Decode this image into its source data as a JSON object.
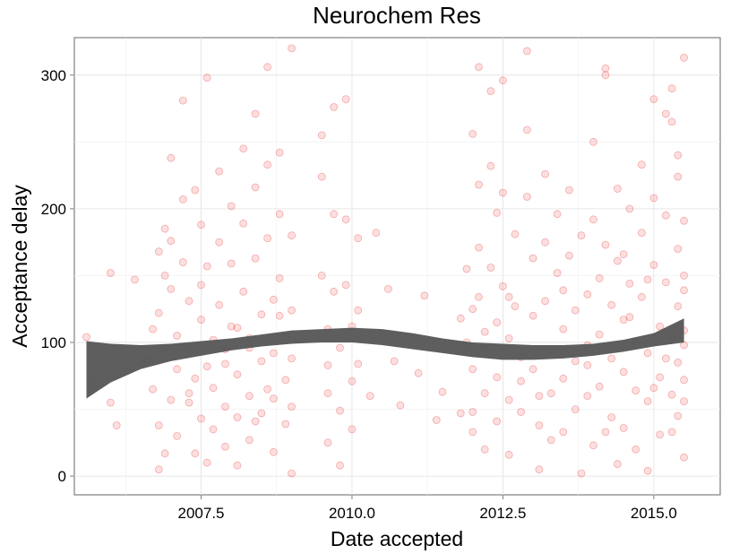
{
  "chart_data": {
    "type": "scatter",
    "title": "Neurochem Res",
    "xlabel": "Date accepted",
    "ylabel": "Acceptance delay",
    "xlim": [
      2005.4,
      2016.1
    ],
    "ylim": [
      -14,
      328
    ],
    "xticks": [
      2007.5,
      2010.0,
      2012.5,
      2015.0
    ],
    "xtick_labels": [
      "2007.5",
      "2010.0",
      "2012.5",
      "2015.0"
    ],
    "yticks": [
      0,
      100,
      200,
      300
    ],
    "ytick_labels": [
      "0",
      "100",
      "200",
      "300"
    ],
    "grid": true,
    "point_color": "#e8262a",
    "band_color": "#555555",
    "series": [
      {
        "type": "scatter",
        "points": [
          [
            2005.6,
            104
          ],
          [
            2005.7,
            70
          ],
          [
            2006.0,
            152
          ],
          [
            2006.0,
            55
          ],
          [
            2006.1,
            38
          ],
          [
            2006.4,
            147
          ],
          [
            2006.6,
            87
          ],
          [
            2006.8,
            122
          ],
          [
            2006.8,
            168
          ],
          [
            2006.9,
            185
          ],
          [
            2006.9,
            96
          ],
          [
            2006.7,
            65
          ],
          [
            2006.8,
            38
          ],
          [
            2006.9,
            17
          ],
          [
            2006.8,
            5
          ],
          [
            2007.0,
            238
          ],
          [
            2007.0,
            140
          ],
          [
            2007.1,
            105
          ],
          [
            2007.1,
            80
          ],
          [
            2007.0,
            57
          ],
          [
            2007.1,
            30
          ],
          [
            2007.2,
            281
          ],
          [
            2007.2,
            207
          ],
          [
            2007.2,
            160
          ],
          [
            2007.3,
            131
          ],
          [
            2007.3,
            94
          ],
          [
            2007.3,
            62
          ],
          [
            2007.4,
            17
          ],
          [
            2007.4,
            214
          ],
          [
            2007.5,
            188
          ],
          [
            2007.5,
            143
          ],
          [
            2007.5,
            117
          ],
          [
            2007.4,
            73
          ],
          [
            2007.5,
            43
          ],
          [
            2007.6,
            10
          ],
          [
            2007.6,
            298
          ],
          [
            2007.6,
            157
          ],
          [
            2007.7,
            102
          ],
          [
            2007.7,
            66
          ],
          [
            2007.7,
            35
          ],
          [
            2007.8,
            228
          ],
          [
            2007.8,
            175
          ],
          [
            2007.8,
            128
          ],
          [
            2007.9,
            84
          ],
          [
            2007.9,
            52
          ],
          [
            2007.9,
            22
          ],
          [
            2008.0,
            202
          ],
          [
            2008.0,
            159
          ],
          [
            2008.0,
            112
          ],
          [
            2008.1,
            76
          ],
          [
            2008.1,
            44
          ],
          [
            2008.1,
            8
          ],
          [
            2008.2,
            245
          ],
          [
            2008.2,
            189
          ],
          [
            2008.2,
            138
          ],
          [
            2008.3,
            96
          ],
          [
            2008.3,
            60
          ],
          [
            2008.3,
            27
          ],
          [
            2008.4,
            271
          ],
          [
            2008.4,
            216
          ],
          [
            2008.4,
            163
          ],
          [
            2008.5,
            121
          ],
          [
            2008.5,
            86
          ],
          [
            2008.5,
            47
          ],
          [
            2008.6,
            306
          ],
          [
            2008.6,
            233
          ],
          [
            2008.6,
            178
          ],
          [
            2008.7,
            132
          ],
          [
            2008.7,
            92
          ],
          [
            2008.7,
            58
          ],
          [
            2008.7,
            18
          ],
          [
            2008.8,
            242
          ],
          [
            2008.8,
            196
          ],
          [
            2008.8,
            148
          ],
          [
            2008.9,
            104
          ],
          [
            2008.9,
            72
          ],
          [
            2008.9,
            39
          ],
          [
            2009.0,
            320
          ],
          [
            2009.0,
            180
          ],
          [
            2009.0,
            124
          ],
          [
            2009.0,
            88
          ],
          [
            2009.0,
            52
          ],
          [
            2009.0,
            2
          ],
          [
            2009.5,
            255
          ],
          [
            2009.5,
            224
          ],
          [
            2009.5,
            150
          ],
          [
            2009.6,
            110
          ],
          [
            2009.6,
            62
          ],
          [
            2009.6,
            25
          ],
          [
            2009.7,
            276
          ],
          [
            2009.7,
            196
          ],
          [
            2009.7,
            138
          ],
          [
            2009.8,
            96
          ],
          [
            2009.8,
            49
          ],
          [
            2009.8,
            8
          ],
          [
            2009.9,
            282
          ],
          [
            2009.9,
            192
          ],
          [
            2009.9,
            143
          ],
          [
            2010.0,
            112
          ],
          [
            2010.0,
            71
          ],
          [
            2010.0,
            35
          ],
          [
            2010.1,
            178
          ],
          [
            2010.1,
            124
          ],
          [
            2010.1,
            84
          ],
          [
            2010.3,
            60
          ],
          [
            2010.4,
            182
          ],
          [
            2010.6,
            140
          ],
          [
            2010.7,
            86
          ],
          [
            2010.8,
            53
          ],
          [
            2011.1,
            77
          ],
          [
            2011.2,
            135
          ],
          [
            2011.4,
            42
          ],
          [
            2011.5,
            63
          ],
          [
            2011.8,
            47
          ],
          [
            2011.9,
            100
          ],
          [
            2011.9,
            155
          ],
          [
            2012.0,
            256
          ],
          [
            2012.0,
            125
          ],
          [
            2012.0,
            80
          ],
          [
            2012.0,
            33
          ],
          [
            2012.1,
            306
          ],
          [
            2012.1,
            218
          ],
          [
            2012.1,
            171
          ],
          [
            2012.1,
            134
          ],
          [
            2012.2,
            96
          ],
          [
            2012.2,
            62
          ],
          [
            2012.2,
            20
          ],
          [
            2012.3,
            288
          ],
          [
            2012.3,
            232
          ],
          [
            2012.3,
            156
          ],
          [
            2012.4,
            115
          ],
          [
            2012.4,
            74
          ],
          [
            2012.4,
            41
          ],
          [
            2012.5,
            296
          ],
          [
            2012.5,
            212
          ],
          [
            2012.5,
            142
          ],
          [
            2012.6,
            103
          ],
          [
            2012.6,
            57
          ],
          [
            2012.6,
            16
          ],
          [
            2012.7,
            181
          ],
          [
            2012.7,
            127
          ],
          [
            2012.8,
            89
          ],
          [
            2012.8,
            48
          ],
          [
            2012.9,
            318
          ],
          [
            2012.9,
            259
          ],
          [
            2012.9,
            209
          ],
          [
            2013.0,
            163
          ],
          [
            2013.0,
            120
          ],
          [
            2013.0,
            80
          ],
          [
            2013.1,
            38
          ],
          [
            2013.1,
            5
          ],
          [
            2013.2,
            226
          ],
          [
            2013.2,
            175
          ],
          [
            2013.2,
            131
          ],
          [
            2013.3,
            94
          ],
          [
            2013.3,
            62
          ],
          [
            2013.3,
            27
          ],
          [
            2013.4,
            196
          ],
          [
            2013.4,
            152
          ],
          [
            2013.5,
            110
          ],
          [
            2013.5,
            73
          ],
          [
            2013.5,
            33
          ],
          [
            2013.6,
            214
          ],
          [
            2013.6,
            165
          ],
          [
            2013.7,
            124
          ],
          [
            2013.7,
            86
          ],
          [
            2013.7,
            50
          ],
          [
            2013.8,
            2
          ],
          [
            2013.8,
            180
          ],
          [
            2013.9,
            136
          ],
          [
            2013.9,
            98
          ],
          [
            2013.9,
            60
          ],
          [
            2014.0,
            23
          ],
          [
            2014.0,
            250
          ],
          [
            2014.0,
            192
          ],
          [
            2014.1,
            148
          ],
          [
            2014.1,
            106
          ],
          [
            2014.1,
            67
          ],
          [
            2014.2,
            300
          ],
          [
            2014.2,
            305
          ],
          [
            2014.2,
            173
          ],
          [
            2014.3,
            128
          ],
          [
            2014.3,
            88
          ],
          [
            2014.3,
            44
          ],
          [
            2014.4,
            9
          ],
          [
            2014.4,
            215
          ],
          [
            2014.4,
            161
          ],
          [
            2014.5,
            117
          ],
          [
            2014.5,
            78
          ],
          [
            2014.5,
            36
          ],
          [
            2014.6,
            200
          ],
          [
            2014.6,
            144
          ],
          [
            2014.7,
            101
          ],
          [
            2014.7,
            64
          ],
          [
            2014.7,
            20
          ],
          [
            2014.8,
            233
          ],
          [
            2014.8,
            182
          ],
          [
            2014.8,
            134
          ],
          [
            2014.9,
            92
          ],
          [
            2014.9,
            56
          ],
          [
            2014.9,
            4
          ],
          [
            2015.0,
            282
          ],
          [
            2015.0,
            208
          ],
          [
            2015.0,
            158
          ],
          [
            2015.1,
            112
          ],
          [
            2015.1,
            74
          ],
          [
            2015.1,
            31
          ],
          [
            2015.2,
            271
          ],
          [
            2015.2,
            195
          ],
          [
            2015.2,
            145
          ],
          [
            2015.3,
            102
          ],
          [
            2015.3,
            61
          ],
          [
            2015.3,
            290
          ],
          [
            2015.3,
            265
          ],
          [
            2015.4,
            224
          ],
          [
            2015.4,
            170
          ],
          [
            2015.4,
            127
          ],
          [
            2015.4,
            85
          ],
          [
            2015.4,
            45
          ],
          [
            2015.5,
            313
          ],
          [
            2015.5,
            191
          ],
          [
            2015.5,
            139
          ],
          [
            2015.5,
            98
          ],
          [
            2015.5,
            56
          ],
          [
            2015.5,
            14
          ],
          [
            2015.4,
            240
          ],
          [
            2015.5,
            150
          ],
          [
            2015.5,
            109
          ],
          [
            2015.5,
            72
          ],
          [
            2015.3,
            33
          ],
          [
            2014.2,
            33
          ],
          [
            2013.1,
            60
          ],
          [
            2012.8,
            71
          ],
          [
            2012.0,
            48
          ],
          [
            2011.8,
            118
          ],
          [
            2008.1,
            111
          ],
          [
            2007.9,
            95
          ],
          [
            2007.3,
            55
          ],
          [
            2006.9,
            150
          ],
          [
            2008.6,
            65
          ],
          [
            2008.3,
            103
          ],
          [
            2009.6,
            83
          ],
          [
            2007.6,
            82
          ],
          [
            2008.4,
            41
          ],
          [
            2012.6,
            134
          ],
          [
            2013.5,
            139
          ],
          [
            2014.6,
            119
          ],
          [
            2014.9,
            147
          ],
          [
            2015.2,
            88
          ],
          [
            2012.2,
            108
          ],
          [
            2013.9,
            83
          ],
          [
            2006.7,
            110
          ],
          [
            2007.0,
            176
          ],
          [
            2008.8,
            120
          ],
          [
            2012.4,
            197
          ],
          [
            2014.5,
            166
          ],
          [
            2015.0,
            66
          ]
        ]
      },
      {
        "type": "band",
        "x": [
          2005.6,
          2006.0,
          2006.5,
          2007.0,
          2007.5,
          2008.0,
          2008.5,
          2009.0,
          2009.5,
          2010.0,
          2010.5,
          2011.0,
          2011.5,
          2012.0,
          2012.5,
          2013.0,
          2013.5,
          2014.0,
          2014.5,
          2015.0,
          2015.5
        ],
        "upper": [
          101,
          99,
          98,
          99,
          101,
          103,
          106,
          109,
          110,
          111,
          110,
          107,
          103,
          100,
          99,
          98,
          98,
          99,
          102,
          107,
          118
        ],
        "lower": [
          58,
          70,
          80,
          86,
          90,
          94,
          97,
          99,
          100,
          100,
          98,
          95,
          92,
          89,
          87,
          87,
          88,
          90,
          93,
          97,
          100
        ]
      }
    ]
  }
}
